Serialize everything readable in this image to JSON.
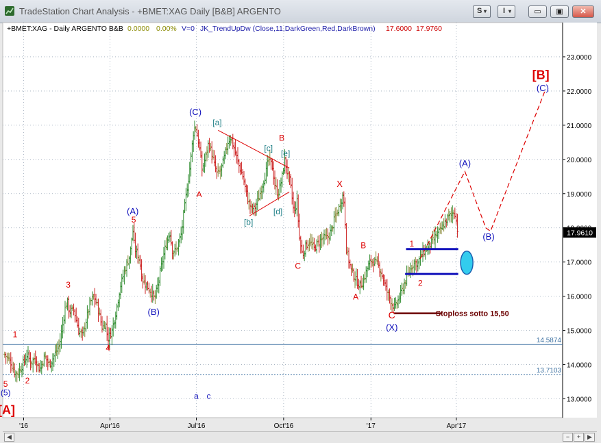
{
  "window": {
    "title": "TradeStation Chart Analysis - +BMET:XAG Daily [B&B] ARGENTO",
    "btn_s": "S",
    "btn_i": "I",
    "min": "▭",
    "max": "▣",
    "close": "✕"
  },
  "header": {
    "symbol": "+BMET:XAG - Daily  ARGENTO  B&B",
    "v1": "0.0000",
    "v2": "0.00%",
    "v3": "V=0",
    "indicator": "JK_TrendUpDw (Close,11,DarkGreen,Red,DarkBrown)",
    "p1": "17.6000",
    "p2": "17.9760"
  },
  "colors": {
    "bg": "#ffffff",
    "grid": "#9aa8b8",
    "up": "#2e8b2e",
    "down": "#cc2020",
    "neutral": "#8a8a3a",
    "red": "#dd0000",
    "blue": "#1010bb",
    "teal": "#1f7f86",
    "stoploss": "#6b0000",
    "hline": "#3a6fa0",
    "cyan": "#33ccee"
  },
  "chart_data": {
    "type": "ohlc",
    "yaxis": {
      "ticks": [
        "23.0000",
        "22.0000",
        "21.0000",
        "20.0000",
        "19.0000",
        "18.0000",
        "17.0000",
        "16.0000",
        "15.0000",
        "14.0000",
        "13.0000"
      ],
      "ylim": [
        12.45,
        24.0
      ]
    },
    "xaxis": {
      "ticks": [
        {
          "label": "'16",
          "x": 0
        },
        {
          "label": "Apr'16",
          "x": 91
        },
        {
          "label": "Jul'16",
          "x": 182
        },
        {
          "label": "Oct'16",
          "x": 274
        },
        {
          "label": "'17",
          "x": 366
        },
        {
          "label": "Apr'17",
          "x": 456
        }
      ],
      "xlim": [
        -22,
        568
      ]
    },
    "last_price": "17.9610",
    "hlines": [
      {
        "value": 14.5874,
        "label": "14.5874",
        "style": "solid"
      },
      {
        "value": 13.7103,
        "label": "13.7103",
        "style": "dashed"
      }
    ],
    "price_path": [
      [
        -20,
        14.3
      ],
      [
        -14,
        14.1
      ],
      [
        -9,
        13.75
      ],
      [
        -6,
        13.75
      ],
      [
        -1,
        14.0
      ],
      [
        4,
        14.3
      ],
      [
        8,
        14.05
      ],
      [
        12,
        14.2
      ],
      [
        17,
        13.85
      ],
      [
        22,
        14.25
      ],
      [
        27,
        14.0
      ],
      [
        33,
        14.3
      ],
      [
        38,
        14.6
      ],
      [
        44,
        15.7
      ],
      [
        46,
        15.85
      ],
      [
        48,
        15.55
      ],
      [
        53,
        15.6
      ],
      [
        58,
        15.0
      ],
      [
        62,
        14.85
      ],
      [
        66,
        15.3
      ],
      [
        70,
        15.8
      ],
      [
        74,
        16.0
      ],
      [
        78,
        15.7
      ],
      [
        83,
        15.05
      ],
      [
        86,
        15.25
      ],
      [
        89,
        14.75
      ],
      [
        93,
        15.0
      ],
      [
        97,
        15.5
      ],
      [
        102,
        16.3
      ],
      [
        107,
        16.8
      ],
      [
        112,
        17.2
      ],
      [
        115,
        17.95
      ],
      [
        117,
        17.4
      ],
      [
        122,
        17.1
      ],
      [
        125,
        16.5
      ],
      [
        130,
        16.3
      ],
      [
        135,
        16.1
      ],
      [
        138,
        15.9
      ],
      [
        142,
        16.4
      ],
      [
        146,
        17.0
      ],
      [
        150,
        17.5
      ],
      [
        154,
        17.9
      ],
      [
        157,
        17.3
      ],
      [
        161,
        17.35
      ],
      [
        166,
        17.8
      ],
      [
        171,
        18.9
      ],
      [
        174,
        19.5
      ],
      [
        176,
        20.0
      ],
      [
        179,
        20.8
      ],
      [
        181,
        21.0
      ],
      [
        185,
        20.4
      ],
      [
        188,
        19.7
      ],
      [
        192,
        20.1
      ],
      [
        195,
        20.5
      ],
      [
        198,
        20.2
      ],
      [
        201,
        19.85
      ],
      [
        204,
        19.55
      ],
      [
        208,
        19.7
      ],
      [
        212,
        20.1
      ],
      [
        215,
        20.5
      ],
      [
        218,
        20.65
      ],
      [
        222,
        20.3
      ],
      [
        226,
        19.9
      ],
      [
        231,
        19.5
      ],
      [
        236,
        18.85
      ],
      [
        240,
        18.55
      ],
      [
        244,
        18.6
      ],
      [
        248,
        18.9
      ],
      [
        252,
        19.3
      ],
      [
        256,
        19.7
      ],
      [
        258,
        20.0
      ],
      [
        262,
        19.8
      ],
      [
        265,
        19.2
      ],
      [
        268,
        19.0
      ],
      [
        272,
        19.4
      ],
      [
        275,
        20.0
      ],
      [
        278,
        19.6
      ],
      [
        281,
        19.3
      ],
      [
        285,
        18.4
      ],
      [
        288,
        18.8
      ],
      [
        291,
        17.6
      ],
      [
        294,
        17.2
      ],
      [
        297,
        17.45
      ],
      [
        301,
        17.6
      ],
      [
        306,
        17.4
      ],
      [
        310,
        17.55
      ],
      [
        315,
        17.7
      ],
      [
        320,
        17.7
      ],
      [
        324,
        17.9
      ],
      [
        328,
        18.3
      ],
      [
        332,
        18.55
      ],
      [
        336,
        18.95
      ],
      [
        338,
        18.7
      ],
      [
        340,
        17.4
      ],
      [
        343,
        17.0
      ],
      [
        346,
        16.7
      ],
      [
        350,
        16.5
      ],
      [
        354,
        16.3
      ],
      [
        358,
        16.45
      ],
      [
        362,
        16.8
      ],
      [
        366,
        17.05
      ],
      [
        370,
        17.0
      ],
      [
        374,
        16.9
      ],
      [
        378,
        16.6
      ],
      [
        382,
        16.2
      ],
      [
        385,
        16.0
      ],
      [
        388,
        15.8
      ],
      [
        391,
        15.65
      ],
      [
        395,
        15.9
      ],
      [
        399,
        16.2
      ],
      [
        403,
        16.5
      ],
      [
        407,
        16.75
      ],
      [
        411,
        17.0
      ],
      [
        415,
        16.95
      ],
      [
        419,
        17.2
      ],
      [
        423,
        17.35
      ],
      [
        427,
        17.45
      ],
      [
        431,
        17.6
      ],
      [
        435,
        17.8
      ],
      [
        439,
        17.9
      ],
      [
        443,
        18.1
      ],
      [
        447,
        18.3
      ],
      [
        451,
        18.4
      ],
      [
        454,
        18.5
      ],
      [
        456,
        18.2
      ],
      [
        458,
        17.75
      ]
    ],
    "wave_labels": [
      {
        "text": "1",
        "x": -9,
        "y": 14.8,
        "color": "red",
        "size": 12
      },
      {
        "text": "2",
        "x": 4,
        "y": 13.45,
        "color": "red",
        "size": 12
      },
      {
        "text": "3",
        "x": 47,
        "y": 16.25,
        "color": "red",
        "size": 12
      },
      {
        "text": "4",
        "x": 89,
        "y": 14.4,
        "color": "red",
        "size": 12
      },
      {
        "text": "5",
        "x": -19,
        "y": 13.35,
        "color": "red",
        "size": 12
      },
      {
        "text": "(5)",
        "x": -19,
        "y": 13.1,
        "color": "blue",
        "size": 12
      },
      {
        "text": "[A]",
        "x": -18,
        "y": 12.55,
        "color": "red",
        "size": 18,
        "bold": true
      },
      {
        "text": "5",
        "x": 116,
        "y": 18.15,
        "color": "red",
        "size": 12
      },
      {
        "text": "(A)",
        "x": 115,
        "y": 18.4,
        "color": "blue",
        "size": 13
      },
      {
        "text": "(B)",
        "x": 137,
        "y": 15.45,
        "color": "blue",
        "size": 13
      },
      {
        "text": "(C)",
        "x": 181,
        "y": 21.3,
        "color": "blue",
        "size": 13
      },
      {
        "text": "A",
        "x": 185,
        "y": 18.9,
        "color": "red",
        "size": 12
      },
      {
        "text": "[a]",
        "x": 204,
        "y": 21.0,
        "color": "teal",
        "size": 12
      },
      {
        "text": "[b]",
        "x": 237,
        "y": 18.08,
        "color": "teal",
        "size": 12
      },
      {
        "text": "[c]",
        "x": 258,
        "y": 20.25,
        "color": "teal",
        "size": 12
      },
      {
        "text": "[d]",
        "x": 268,
        "y": 18.4,
        "color": "teal",
        "size": 12
      },
      {
        "text": "[e]",
        "x": 276,
        "y": 20.1,
        "color": "teal",
        "size": 12
      },
      {
        "text": "B",
        "x": 272,
        "y": 20.55,
        "color": "red",
        "size": 12
      },
      {
        "text": "C",
        "x": 289,
        "y": 16.8,
        "color": "red",
        "size": 12
      },
      {
        "text": "X",
        "x": 333,
        "y": 19.2,
        "color": "red",
        "size": 13
      },
      {
        "text": "B",
        "x": 358,
        "y": 17.4,
        "color": "red",
        "size": 12
      },
      {
        "text": "A",
        "x": 350,
        "y": 15.9,
        "color": "red",
        "size": 12
      },
      {
        "text": "C",
        "x": 388,
        "y": 15.35,
        "color": "red",
        "size": 14
      },
      {
        "text": "(X)",
        "x": 388,
        "y": 15.0,
        "color": "blue",
        "size": 13
      },
      {
        "text": "1",
        "x": 409,
        "y": 17.45,
        "color": "red",
        "size": 12
      },
      {
        "text": "2",
        "x": 418,
        "y": 16.3,
        "color": "red",
        "size": 12
      },
      {
        "text": "(A)",
        "x": 465,
        "y": 19.8,
        "color": "blue",
        "size": 13
      },
      {
        "text": "(B)",
        "x": 490,
        "y": 17.65,
        "color": "blue",
        "size": 13
      },
      {
        "text": "[B]",
        "x": 545,
        "y": 22.35,
        "color": "red",
        "size": 18,
        "bold": true
      },
      {
        "text": "(C)",
        "x": 547,
        "y": 22.0,
        "color": "blue",
        "size": 13
      },
      {
        "text": "a",
        "x": 182,
        "y": 13.0,
        "color": "blue",
        "size": 12
      },
      {
        "text": "c",
        "x": 195,
        "y": 13.0,
        "color": "blue",
        "size": 12
      }
    ],
    "triangle_lines": [
      [
        [
          205,
          20.85
        ],
        [
          280,
          19.75
        ]
      ],
      [
        [
          238,
          18.35
        ],
        [
          280,
          19.05
        ]
      ]
    ],
    "projection": [
      [
        418,
        17.1
      ],
      [
        465,
        19.65
      ],
      [
        487,
        18.0
      ],
      [
        492,
        17.9
      ],
      [
        550,
        22.05
      ]
    ],
    "blue_bars": [
      {
        "x1": 403,
        "x2": 458,
        "y": 17.38
      },
      {
        "x1": 402,
        "x2": 458,
        "y": 16.65
      }
    ],
    "ellipse": {
      "x": 467,
      "y": 16.98,
      "rx": 6.5,
      "ry": 0.34
    },
    "stoploss": {
      "x1": 390,
      "x2": 440,
      "y": 15.5,
      "label": "Stoploss  sotto 15,50"
    }
  }
}
